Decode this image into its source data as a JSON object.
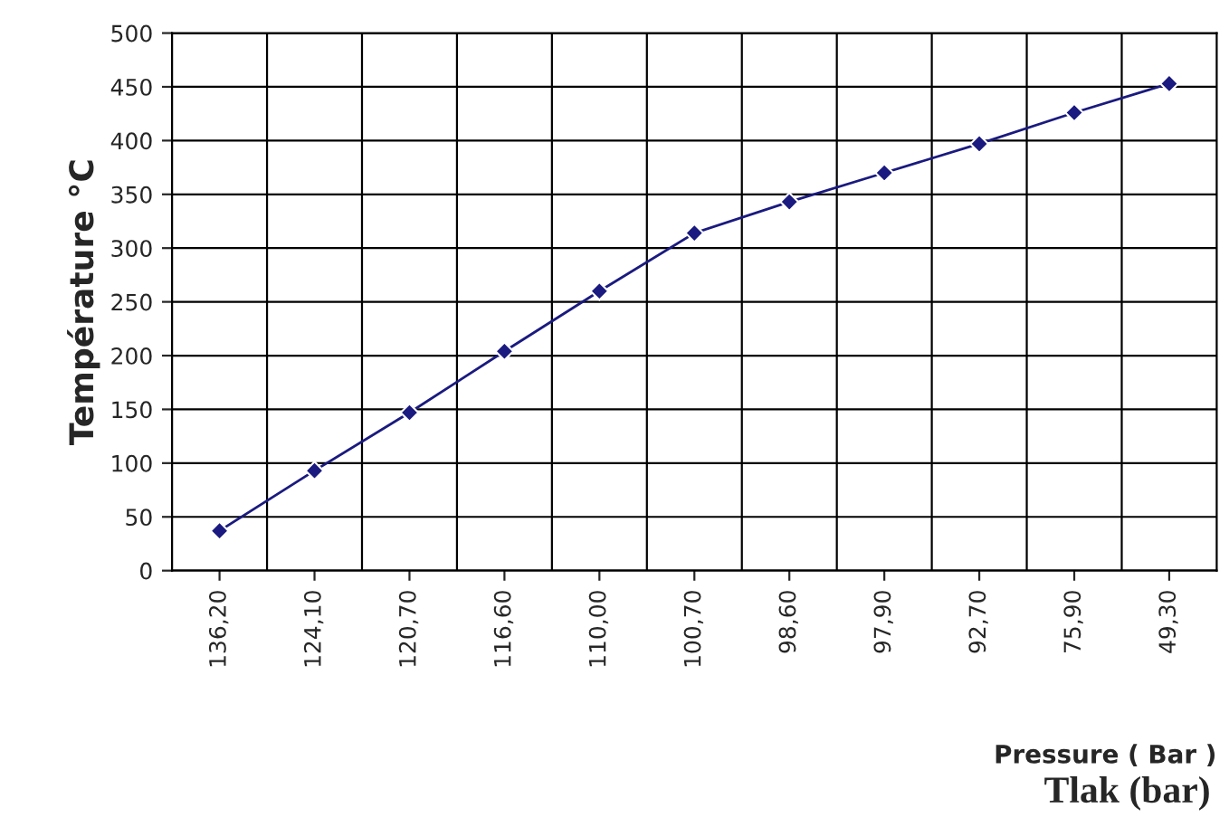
{
  "chart_data": {
    "type": "line",
    "xlabel": "Pressure ( Bar )",
    "ylabel": "Température °C",
    "categories": [
      "136,20",
      "124,10",
      "120,70",
      "116,60",
      "110,00",
      "100,70",
      "98,60",
      "97,90",
      "92,70",
      "75,90",
      "49,30"
    ],
    "series": [
      {
        "color": "#1a1a80",
        "values": [
          37,
          93,
          147,
          204,
          260,
          314,
          343,
          370,
          397,
          426,
          453
        ]
      }
    ],
    "ylim": [
      0,
      500
    ],
    "yticks": [
      0,
      50,
      100,
      150,
      200,
      250,
      300,
      350,
      400,
      450,
      500
    ],
    "grid": true,
    "marker": "diamond",
    "line_style": "solid",
    "annotations": [
      "Tlak (bar)"
    ]
  }
}
